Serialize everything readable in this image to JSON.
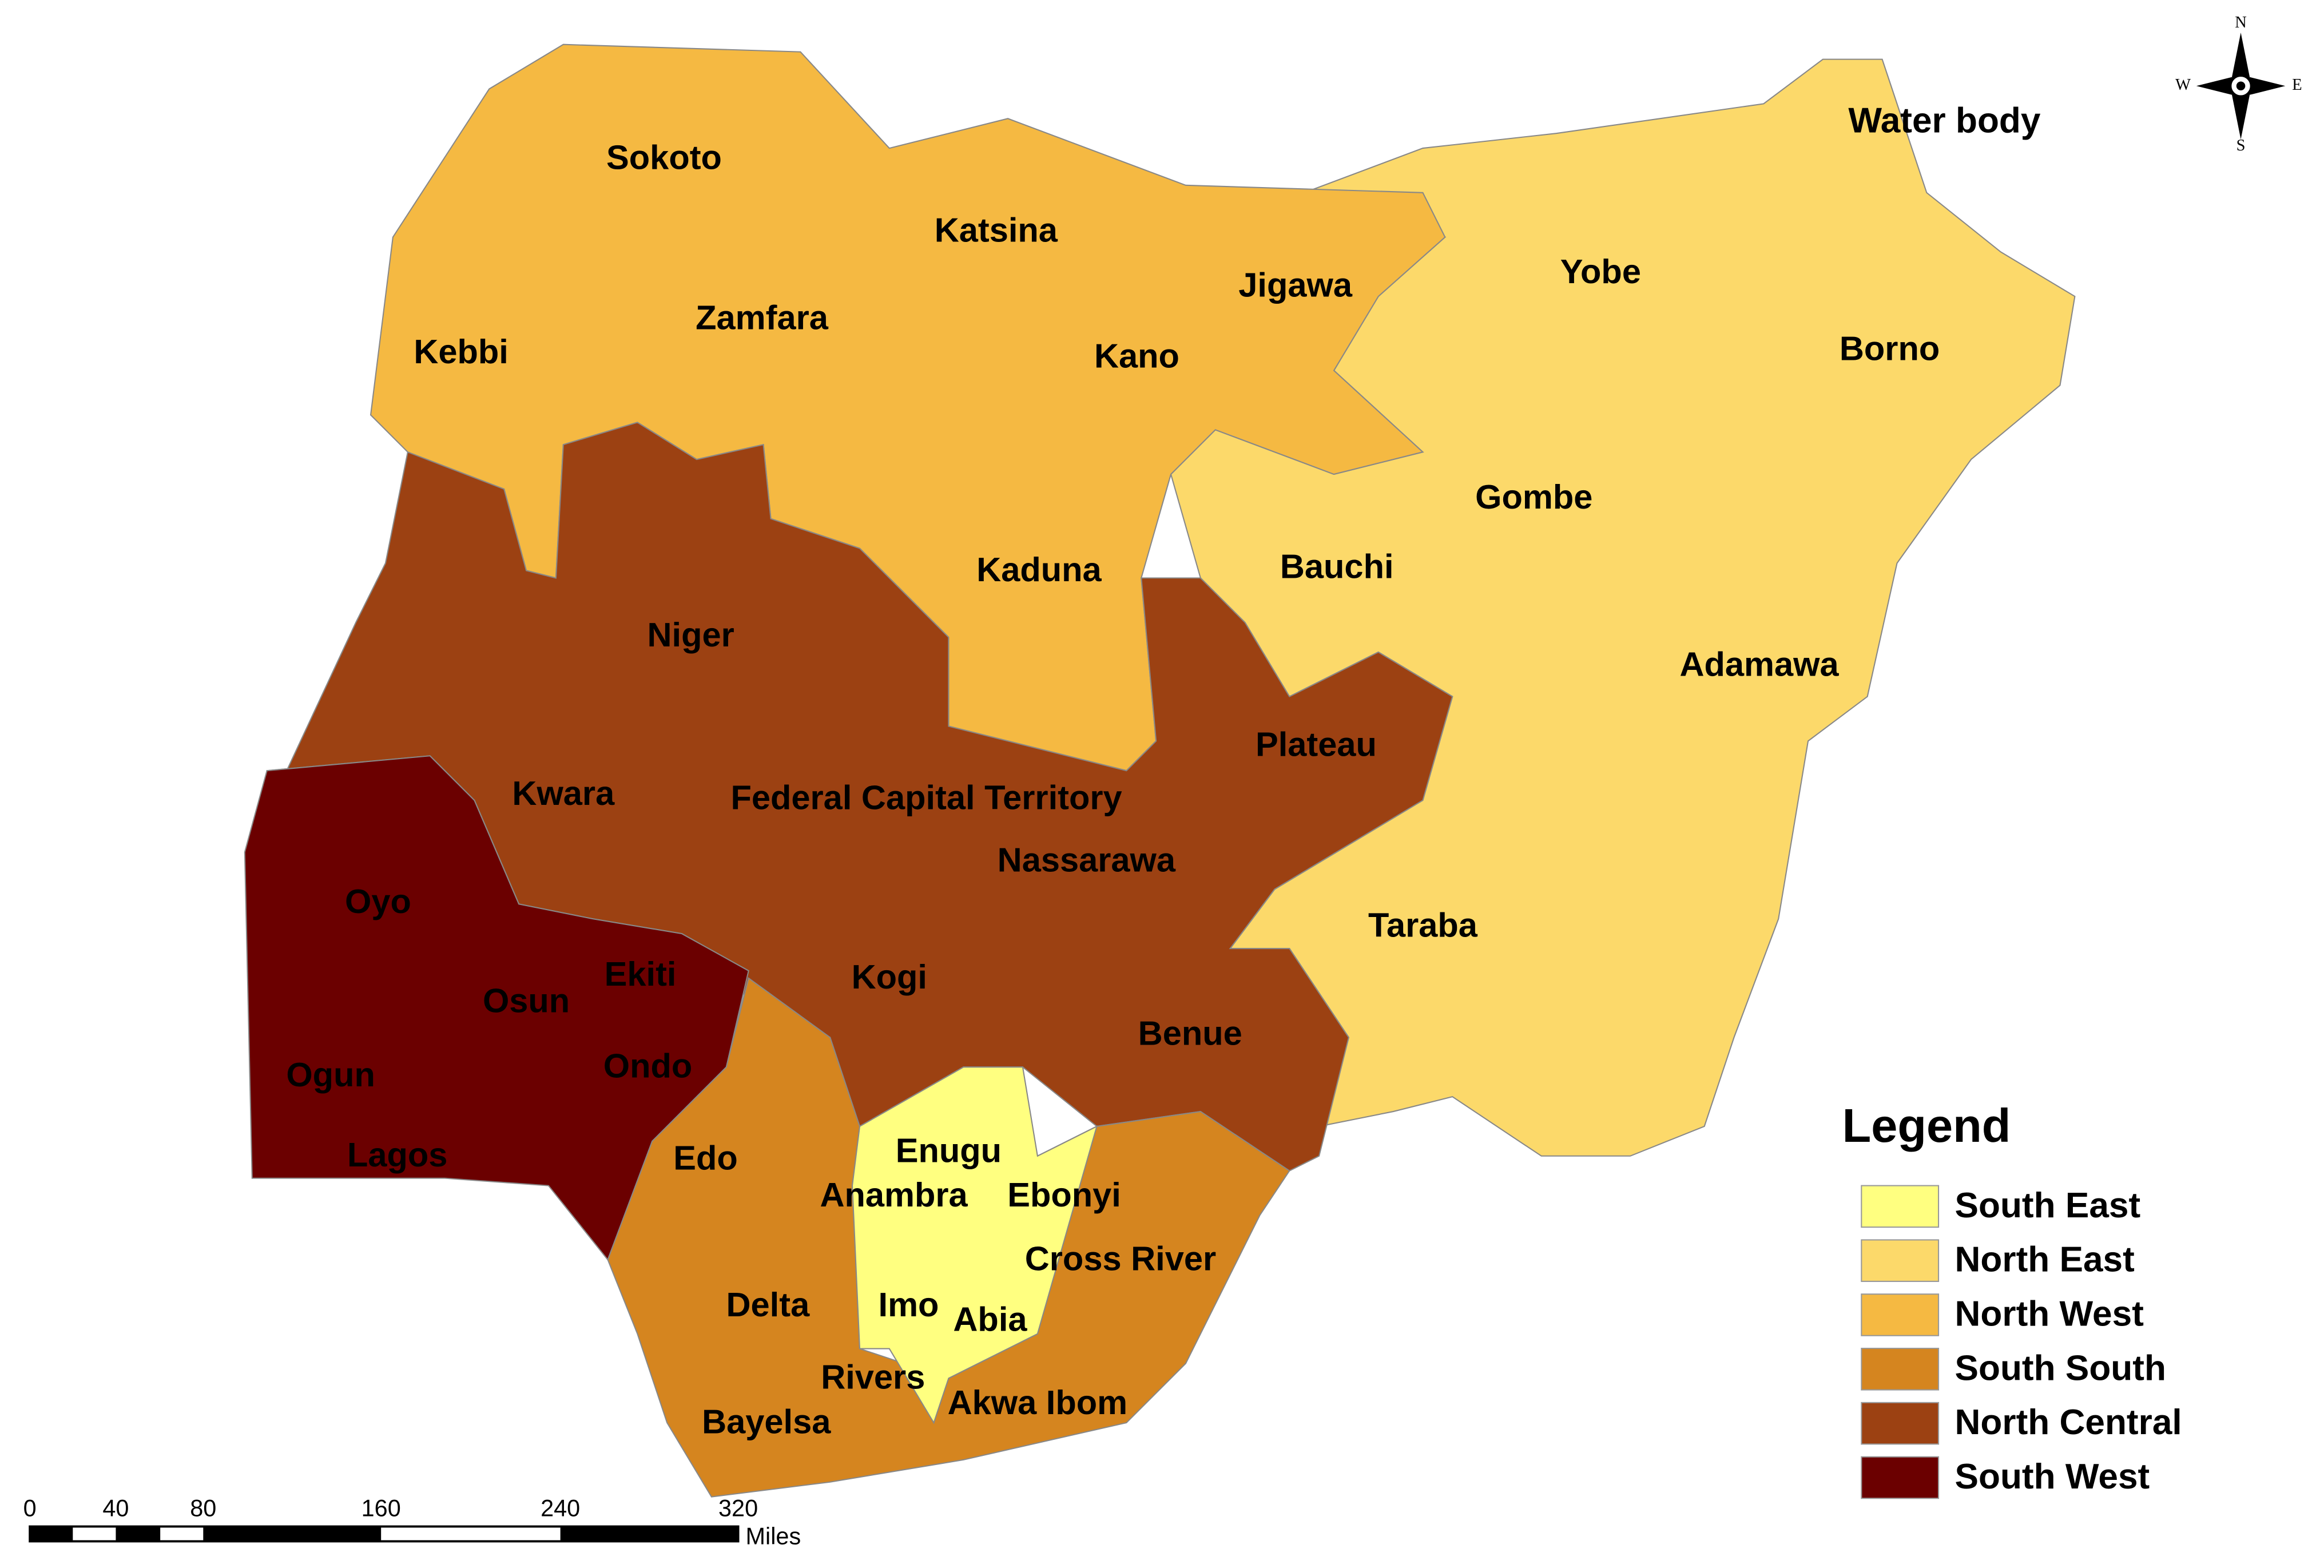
{
  "map": {
    "regions": [
      {
        "name": "South East",
        "color": "#ffff80",
        "states": [
          "Enugu",
          "Anambra",
          "Ebonyi",
          "Imo",
          "Abia"
        ]
      },
      {
        "name": "North East",
        "color": "#fcd96a",
        "states": [
          "Yobe",
          "Borno",
          "Gombe",
          "Bauchi",
          "Adamawa",
          "Taraba"
        ]
      },
      {
        "name": "North West",
        "color": "#f5b942",
        "states": [
          "Sokoto",
          "Katsina",
          "Jigawa",
          "Zamfara",
          "Kebbi",
          "Kano",
          "Kaduna"
        ]
      },
      {
        "name": "South South",
        "color": "#d5851f",
        "states": [
          "Edo",
          "Cross River",
          "Delta",
          "Rivers",
          "Akwa Ibom",
          "Bayelsa"
        ]
      },
      {
        "name": "North Central",
        "color": "#9c4112",
        "states": [
          "Niger",
          "Plateau",
          "Kwara",
          "Federal Capital Territory",
          "Nassarawa",
          "Kogi",
          "Benue"
        ]
      },
      {
        "name": "South West",
        "color": "#6b0000",
        "states": [
          "Oyo",
          "Osun",
          "Ekiti",
          "Ogun",
          "Ondo",
          "Lagos"
        ]
      }
    ],
    "water_body_label": "Water body",
    "legend_title": "Legend",
    "scale_bar": {
      "ticks": [
        "0",
        "40",
        "80",
        "160",
        "240",
        "320"
      ],
      "unit": "Miles"
    },
    "compass": [
      "N",
      "W",
      "E",
      "S"
    ]
  }
}
